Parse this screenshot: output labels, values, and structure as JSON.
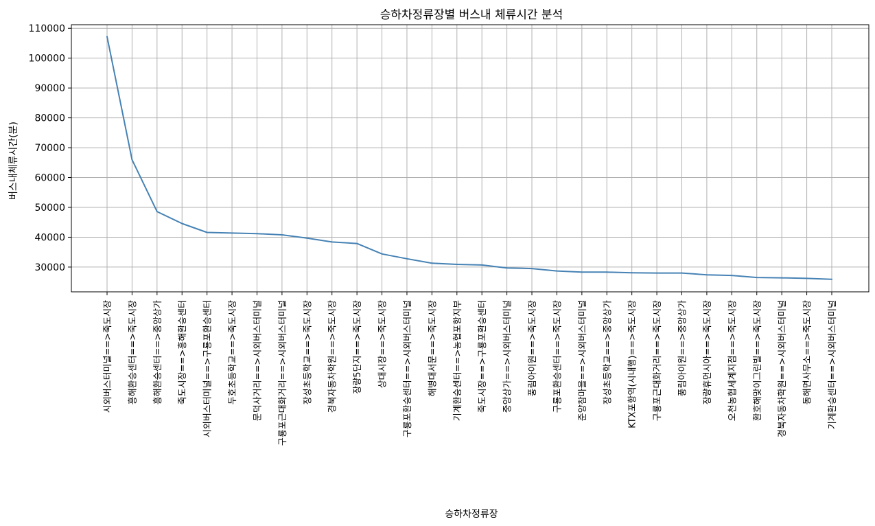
{
  "chart_data": {
    "type": "line",
    "title": "승하차정류장별 버스내 체류시간 분석",
    "xlabel": "승하차정류장",
    "ylabel": "버스내체류시간(분)",
    "categories": [
      "시외버스터미널==>죽도시장",
      "흥해환승센터==>죽도시장",
      "흥해환승센터==>중앙상가",
      "죽도시장==>흥해환승센터",
      "시외버스터미널==>구룡포환승센터",
      "두호초등학교==>죽도시장",
      "문덕사거리==>시외버스터미널",
      "구룡포근대화거리==>시외버스터미널",
      "장성초등학교==>죽도시장",
      "경북자동차학원==>죽도시장",
      "장량5단지==>죽도시장",
      "상대시장==>죽도시장",
      "구룡포환승센터==>시외버스터미널",
      "해병대서문==>죽도시장",
      "기계환승센터==>농협포항지부",
      "죽도시장==>구룡포환승센터",
      "중앙상가==>시외버스터미널",
      "풍림아이원==>죽도시장",
      "구룡포환승센터==>죽도시장",
      "준양참마을==>시외버스터미널",
      "장성초등학교==>중앙상가",
      "KTX포항역(시내행)==>죽도시장",
      "구룡포근대화거리==>죽도시장",
      "풍림아이원==>중앙상가",
      "장량휴먼시아==>죽도시장",
      "오천농협세계지점==>죽도시장",
      "환호해맞이그린빌==>죽도시장",
      "경북자동차학원==>시외버스터미널",
      "동해면사무소==>죽도시장",
      "기계환승센터==>시외버스터미널"
    ],
    "series": [
      {
        "values": [
          107200,
          66000,
          48600,
          44600,
          41600,
          41400,
          41200,
          40800,
          39700,
          38400,
          37900,
          34400,
          32800,
          31300,
          30900,
          30700,
          29700,
          29500,
          28700,
          28300,
          28300,
          28100,
          28000,
          28000,
          27400,
          27200,
          26500,
          26400,
          26200,
          25900
        ]
      }
    ],
    "yticks": [
      30000,
      40000,
      50000,
      60000,
      70000,
      80000,
      90000,
      100000,
      110000
    ],
    "ylim": [
      21700,
      111200
    ],
    "grid": true,
    "line_color": "#4682b4"
  }
}
